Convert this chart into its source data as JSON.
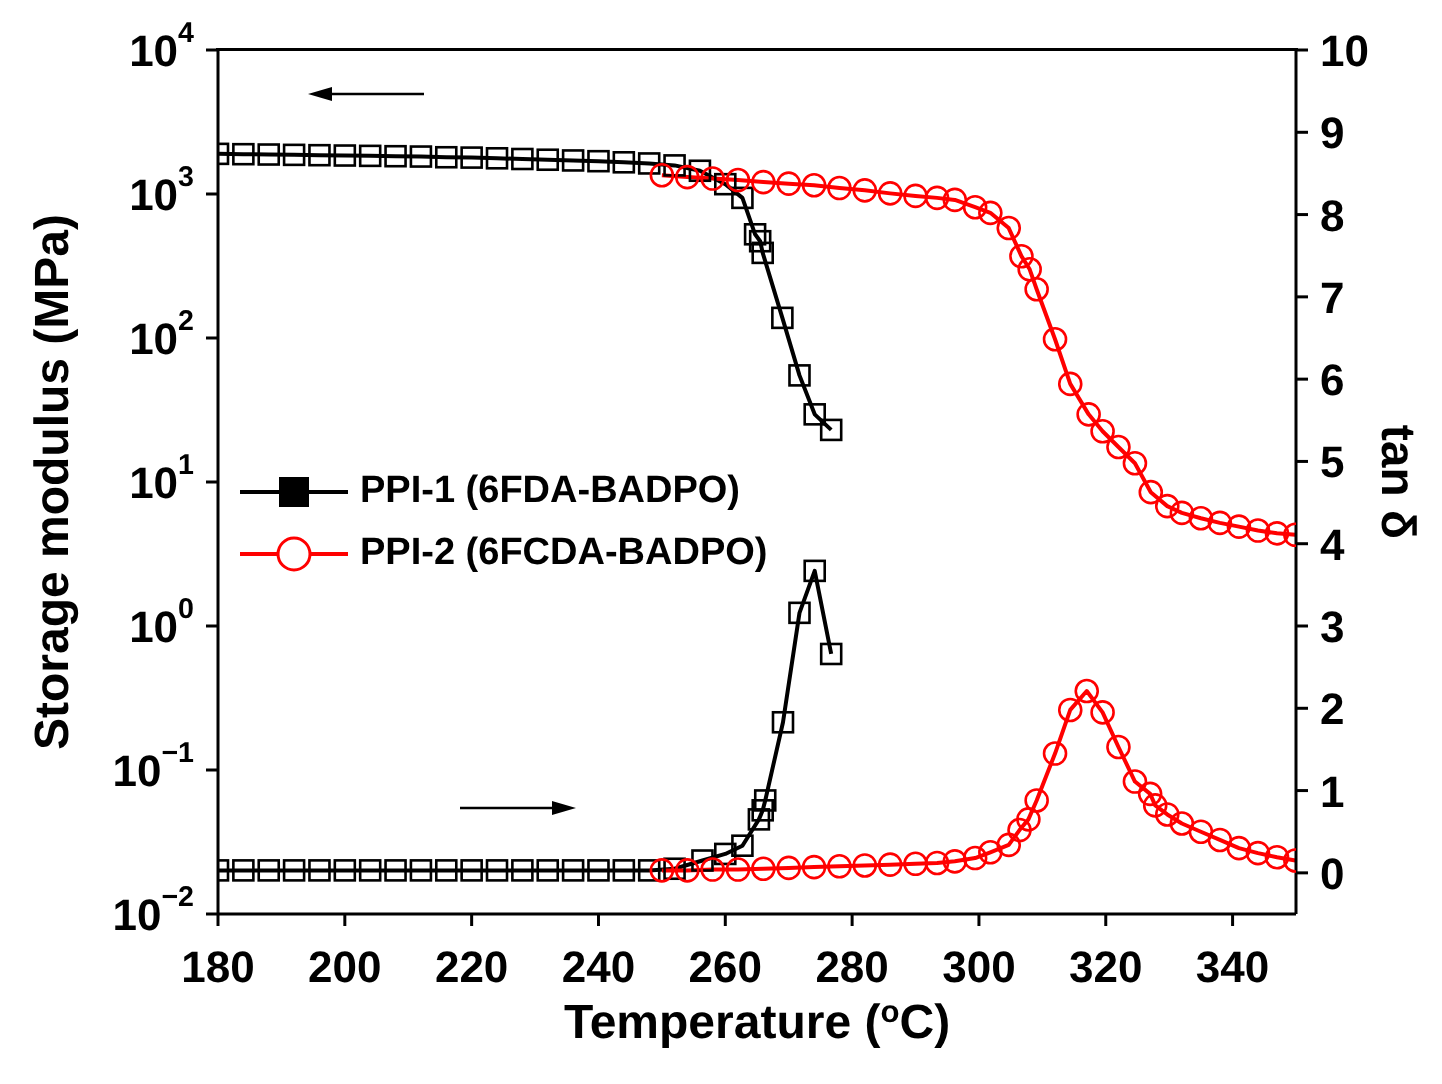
{
  "chart_data": {
    "type": "line",
    "xlabel": "Temperature ($^{o}$C)",
    "ylabel": "Storage modulus (MPa)",
    "y2label": "tan δ",
    "log": "y",
    "legend": "left",
    "grid": false,
    "xlim": [
      180,
      350
    ],
    "xticks": [
      180,
      200,
      220,
      240,
      260,
      280,
      300,
      320,
      340
    ],
    "ylim": [
      0.01,
      10000
    ],
    "yticks": [
      {
        "value": 0.01,
        "label": "10$^{−2}$"
      },
      {
        "value": 0.1,
        "label": "10$^{−1}$"
      },
      {
        "value": 1,
        "label": "10$^{0}$"
      },
      {
        "value": 10,
        "label": "10$^{1}$"
      },
      {
        "value": 100,
        "label": "10$^{2}$"
      },
      {
        "value": 1000,
        "label": "10$^{3}$"
      },
      {
        "value": 10000,
        "label": "10$^{4}$"
      }
    ],
    "y2lim": [
      -0.5,
      10
    ],
    "y2ticks": [
      0,
      1,
      2,
      3,
      4,
      5,
      6,
      7,
      8,
      9,
      10
    ],
    "series": [
      {
        "name": "PPI-1 (6FDA-BADPO)",
        "color": "#000000",
        "marker": "square",
        "x": [
          180,
          184,
          188,
          192,
          196,
          200,
          204,
          208,
          212,
          216,
          220,
          224,
          228,
          232,
          236,
          240,
          244,
          248,
          252,
          256,
          260,
          262.7,
          264.7,
          265.5,
          265.9,
          269,
          271.7,
          274.1,
          276.7
        ],
        "values": [
          1900,
          1890,
          1880,
          1870,
          1860,
          1850,
          1840,
          1830,
          1820,
          1800,
          1790,
          1770,
          1750,
          1730,
          1710,
          1690,
          1660,
          1630,
          1580,
          1450,
          1170,
          940,
          525,
          470,
          390,
          138,
          55,
          29.5,
          23
        ]
      },
      {
        "name": "PPI-2 (6FCDA-BADPO)",
        "color": "#ff0000",
        "marker": "circle",
        "x": [
          250,
          254,
          258,
          262,
          266,
          270,
          274,
          278,
          282,
          286,
          290,
          293.4,
          296.2,
          299.4,
          301.8,
          304.7,
          306.7,
          308,
          309.1,
          312,
          314.4,
          317.3,
          319.5,
          322,
          324.6,
          327.1,
          329.7,
          332,
          335,
          338,
          341,
          344,
          347,
          349.9
        ],
        "values": [
          1350,
          1310,
          1280,
          1250,
          1210,
          1180,
          1150,
          1100,
          1060,
          1010,
          970,
          940,
          910,
          810,
          740,
          580,
          370,
          300,
          218,
          98,
          48,
          29.5,
          22.5,
          17.5,
          13.5,
          8.5,
          6.8,
          6.1,
          5.6,
          5.2,
          4.9,
          4.6,
          4.4,
          4.3
        ]
      },
      {
        "color": "#000000",
        "marker": "square",
        "axis": "y2",
        "x": [
          180,
          184,
          188,
          192,
          196,
          200,
          204,
          208,
          212,
          216,
          220,
          224,
          228,
          232,
          236,
          240,
          244,
          248,
          252,
          256.4,
          260,
          262.7,
          265.3,
          265.9,
          266.3,
          269.1,
          271.7,
          274.1,
          276.7
        ],
        "values": [
          0.03,
          0.03,
          0.03,
          0.03,
          0.03,
          0.03,
          0.03,
          0.03,
          0.03,
          0.03,
          0.03,
          0.03,
          0.03,
          0.03,
          0.03,
          0.03,
          0.03,
          0.03,
          0.05,
          0.15,
          0.23,
          0.33,
          0.65,
          0.76,
          0.88,
          1.83,
          3.16,
          3.67,
          2.66
        ]
      },
      {
        "color": "#ff0000",
        "marker": "circle",
        "axis": "y2",
        "x": [
          250,
          254,
          258,
          262,
          266,
          270,
          274,
          278,
          282,
          286,
          290,
          293.4,
          296.2,
          299.4,
          301.8,
          304.7,
          306.4,
          307.8,
          309.1,
          312,
          314.4,
          317,
          319.5,
          322,
          324.6,
          327,
          327.8,
          329.7,
          332,
          335,
          338,
          341,
          344,
          347,
          349.9
        ],
        "values": [
          0.03,
          0.03,
          0.04,
          0.04,
          0.05,
          0.06,
          0.07,
          0.08,
          0.09,
          0.1,
          0.11,
          0.12,
          0.14,
          0.18,
          0.25,
          0.34,
          0.52,
          0.65,
          0.88,
          1.45,
          1.98,
          2.21,
          1.95,
          1.53,
          1.11,
          0.96,
          0.82,
          0.71,
          0.6,
          0.5,
          0.4,
          0.3,
          0.24,
          0.19,
          0.15
        ]
      }
    ]
  }
}
